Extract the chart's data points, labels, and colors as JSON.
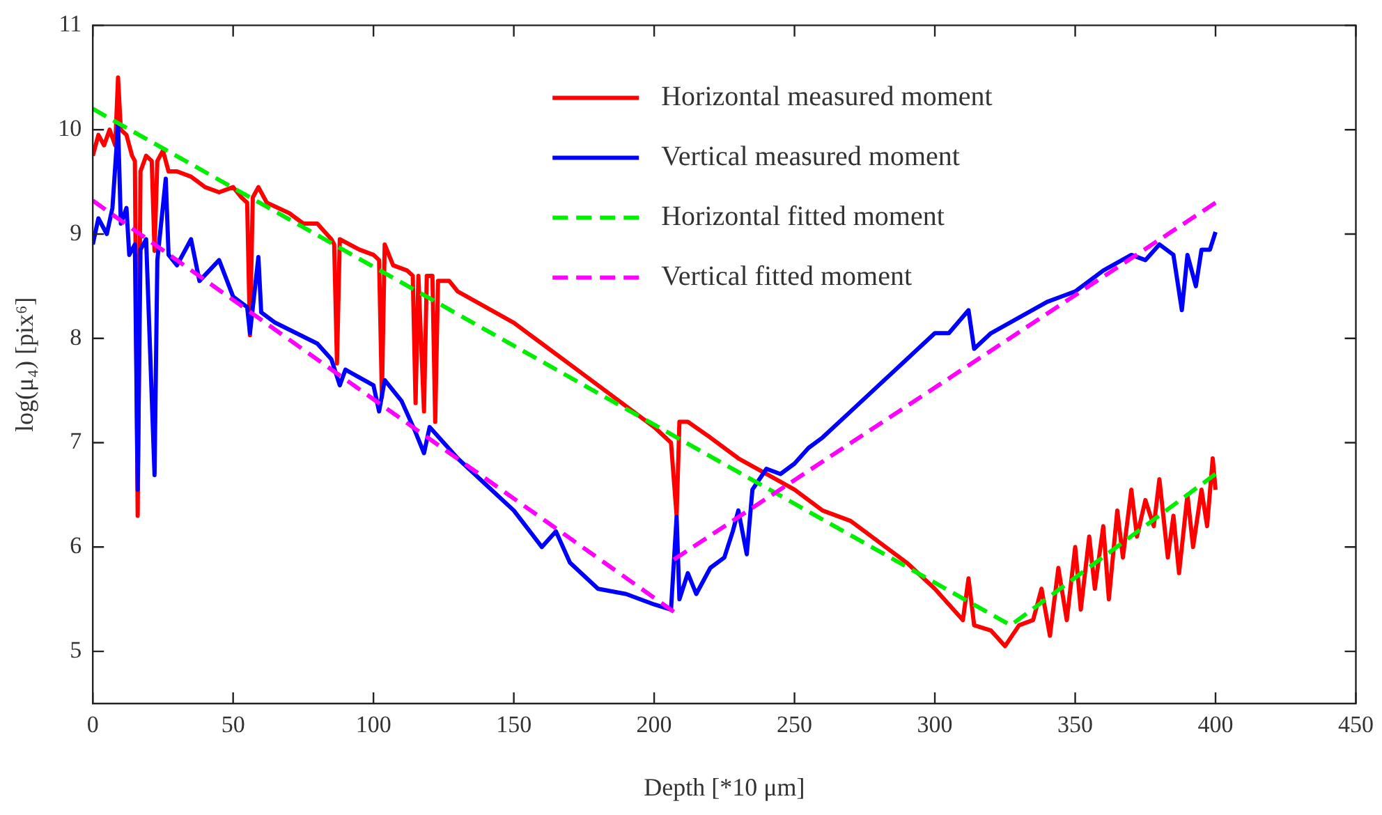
{
  "chart_data": {
    "type": "line",
    "xlabel": "Depth [*10 μm]",
    "ylabel": "log(μ₄) [pix⁶]",
    "xlim": [
      0,
      450
    ],
    "xticks": [
      0,
      50,
      100,
      150,
      200,
      250,
      300,
      350,
      400,
      450
    ],
    "ylim": [
      4.5,
      11
    ],
    "yticks": [
      5,
      6,
      7,
      8,
      9,
      10,
      11
    ],
    "grid": false,
    "legend": "top right",
    "marker": "none",
    "series": [
      {
        "name": "Horizontal measured moment",
        "color": "#ff0000",
        "line_style": "solid",
        "x": [
          0,
          2,
          4,
          6,
          8,
          9,
          10,
          12,
          14,
          15,
          16,
          17,
          19,
          21,
          22,
          23,
          25,
          27,
          30,
          35,
          40,
          45,
          50,
          53,
          55,
          56,
          57,
          59,
          62,
          70,
          75,
          80,
          85,
          86,
          87,
          88,
          95,
          100,
          102,
          103,
          104,
          107,
          112,
          114,
          115,
          116,
          118,
          119,
          121,
          122,
          123,
          127,
          130,
          140,
          150,
          160,
          170,
          180,
          190,
          200,
          206,
          208,
          209,
          212,
          220,
          230,
          240,
          250,
          260,
          270,
          280,
          290,
          300,
          305,
          310,
          312,
          314,
          320,
          325,
          330,
          335,
          338,
          341,
          344,
          347,
          350,
          352,
          355,
          357,
          360,
          362,
          365,
          367,
          370,
          372,
          375,
          378,
          380,
          383,
          385,
          387,
          390,
          392,
          395,
          397,
          399,
          400
        ],
        "values": [
          9.75,
          9.95,
          9.85,
          10.0,
          9.85,
          10.5,
          10.0,
          9.95,
          9.75,
          9.7,
          6.3,
          9.6,
          9.75,
          9.7,
          8.84,
          9.7,
          9.8,
          9.6,
          9.6,
          9.55,
          9.45,
          9.4,
          9.45,
          9.35,
          9.3,
          8.03,
          9.35,
          9.45,
          9.3,
          9.2,
          9.1,
          9.1,
          8.95,
          8.9,
          7.76,
          8.95,
          8.85,
          8.8,
          8.75,
          7.44,
          8.9,
          8.7,
          8.65,
          8.6,
          7.38,
          8.6,
          7.3,
          8.6,
          8.6,
          7.2,
          8.55,
          8.55,
          8.45,
          8.3,
          8.15,
          7.95,
          7.75,
          7.55,
          7.35,
          7.15,
          7.0,
          6.3,
          7.2,
          7.2,
          7.05,
          6.85,
          6.7,
          6.55,
          6.35,
          6.25,
          6.05,
          5.85,
          5.6,
          5.45,
          5.3,
          5.7,
          5.25,
          5.2,
          5.05,
          5.25,
          5.3,
          5.6,
          5.15,
          5.8,
          5.3,
          6.0,
          5.4,
          6.1,
          5.6,
          6.2,
          5.5,
          6.35,
          5.9,
          6.55,
          6.1,
          6.45,
          6.2,
          6.65,
          5.9,
          6.3,
          5.75,
          6.5,
          6.0,
          6.55,
          6.2,
          6.85,
          6.55
        ]
      },
      {
        "name": "Vertical measured moment",
        "color": "#0000ff",
        "line_style": "solid",
        "x": [
          0,
          2,
          5,
          7,
          9,
          10,
          12,
          13,
          15,
          16,
          17,
          19,
          22,
          23,
          26,
          27,
          30,
          35,
          38,
          45,
          50,
          55,
          56,
          59,
          60,
          65,
          80,
          85,
          88,
          90,
          100,
          102,
          104,
          110,
          115,
          118,
          120,
          130,
          140,
          150,
          160,
          165,
          170,
          180,
          190,
          200,
          206,
          208,
          209,
          212,
          215,
          220,
          225,
          228,
          230,
          233,
          235,
          240,
          245,
          250,
          255,
          260,
          270,
          280,
          290,
          300,
          305,
          312,
          314,
          320,
          330,
          340,
          350,
          360,
          370,
          375,
          380,
          385,
          388,
          390,
          393,
          395,
          398,
          400
        ],
        "values": [
          8.9,
          9.15,
          9.0,
          9.25,
          10.05,
          9.1,
          9.25,
          8.8,
          8.9,
          6.55,
          8.85,
          8.95,
          6.69,
          8.75,
          9.53,
          8.8,
          8.7,
          8.95,
          8.55,
          8.75,
          8.4,
          8.3,
          8.05,
          8.78,
          8.25,
          8.15,
          7.95,
          7.8,
          7.55,
          7.7,
          7.55,
          7.3,
          7.6,
          7.4,
          7.1,
          6.9,
          7.15,
          6.85,
          6.6,
          6.35,
          6.0,
          6.15,
          5.85,
          5.6,
          5.55,
          5.45,
          5.4,
          6.29,
          5.5,
          5.75,
          5.55,
          5.8,
          5.9,
          6.15,
          6.35,
          5.93,
          6.55,
          6.75,
          6.7,
          6.8,
          6.95,
          7.05,
          7.3,
          7.55,
          7.8,
          8.05,
          8.05,
          8.27,
          7.9,
          8.05,
          8.2,
          8.35,
          8.45,
          8.65,
          8.8,
          8.75,
          8.9,
          8.8,
          8.27,
          8.8,
          8.5,
          8.85,
          8.85,
          9.02
        ]
      },
      {
        "name": "Horizontal fitted moment",
        "color": "#00ee00",
        "line_style": "dashed",
        "x": [
          0,
          327,
          400
        ],
        "values": [
          10.2,
          5.25,
          6.7
        ]
      },
      {
        "name": "Vertical fitted moment",
        "color": "#ff00ff",
        "line_style": "dashed",
        "x": [
          0,
          207
        ],
        "values": [
          9.32,
          5.38
        ]
      },
      {
        "color": "#ff00ff",
        "line_style": "dashed",
        "x": [
          207,
          400
        ],
        "values": [
          5.88,
          9.3
        ]
      }
    ]
  }
}
